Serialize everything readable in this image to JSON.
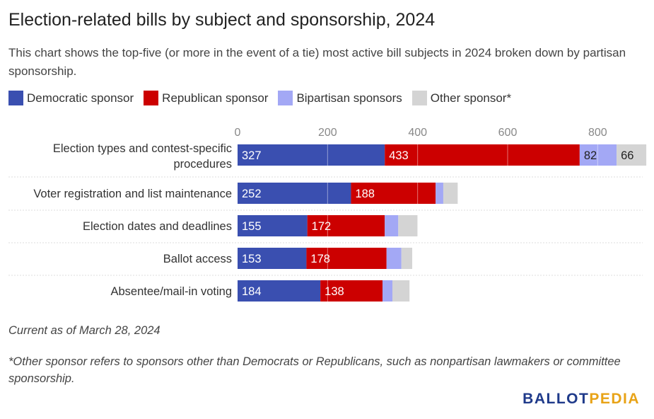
{
  "title": "Election-related bills by subject and sponsorship, 2024",
  "subtitle": "This chart shows the top-five (or more in the event of a tie) most active bill subjects in 2024 broken down by partisan sponsorship.",
  "legend": [
    {
      "label": "Democratic sponsor",
      "color": "#3a4fb0"
    },
    {
      "label": "Republican sponsor",
      "color": "#cc0000"
    },
    {
      "label": "Bipartisan sponsors",
      "color": "#a3a8f5"
    },
    {
      "label": "Other sponsor*",
      "color": "#d4d4d4"
    }
  ],
  "chart_data": {
    "type": "bar",
    "orientation": "horizontal",
    "stacked": true,
    "categories": [
      "Election types and contest-specific procedures",
      "Voter registration and list maintenance",
      "Election dates and deadlines",
      "Ballot access",
      "Absentee/mail-in voting"
    ],
    "series": [
      {
        "name": "Democratic sponsor",
        "color": "#3a4fb0",
        "values": [
          327,
          252,
          155,
          153,
          184
        ],
        "labeled": [
          true,
          true,
          true,
          true,
          true
        ]
      },
      {
        "name": "Republican sponsor",
        "color": "#cc0000",
        "values": [
          433,
          188,
          172,
          178,
          138
        ],
        "labeled": [
          true,
          true,
          true,
          true,
          true
        ]
      },
      {
        "name": "Bipartisan sponsors",
        "color": "#a3a8f5",
        "values": [
          82,
          17,
          30,
          33,
          22
        ],
        "labeled": [
          true,
          false,
          false,
          false,
          false
        ]
      },
      {
        "name": "Other sponsor*",
        "color": "#d4d4d4",
        "values": [
          66,
          32,
          43,
          24,
          38
        ],
        "labeled": [
          true,
          false,
          false,
          false,
          false
        ]
      }
    ],
    "xticks": [
      0,
      200,
      400,
      600,
      800
    ],
    "xlim": [
      0,
      900
    ],
    "grid": true
  },
  "notes": {
    "current_as_of": "Current as of March 28, 2024",
    "footnote": "*Other sponsor refers to sponsors other than Democrats or Republicans, such as nonpartisan lawmakers or committee sponsorship."
  },
  "logo": {
    "part1": "BALLOT",
    "part2": "PEDIA",
    "color1": "#1f3a8a",
    "color2": "#e8a317"
  }
}
